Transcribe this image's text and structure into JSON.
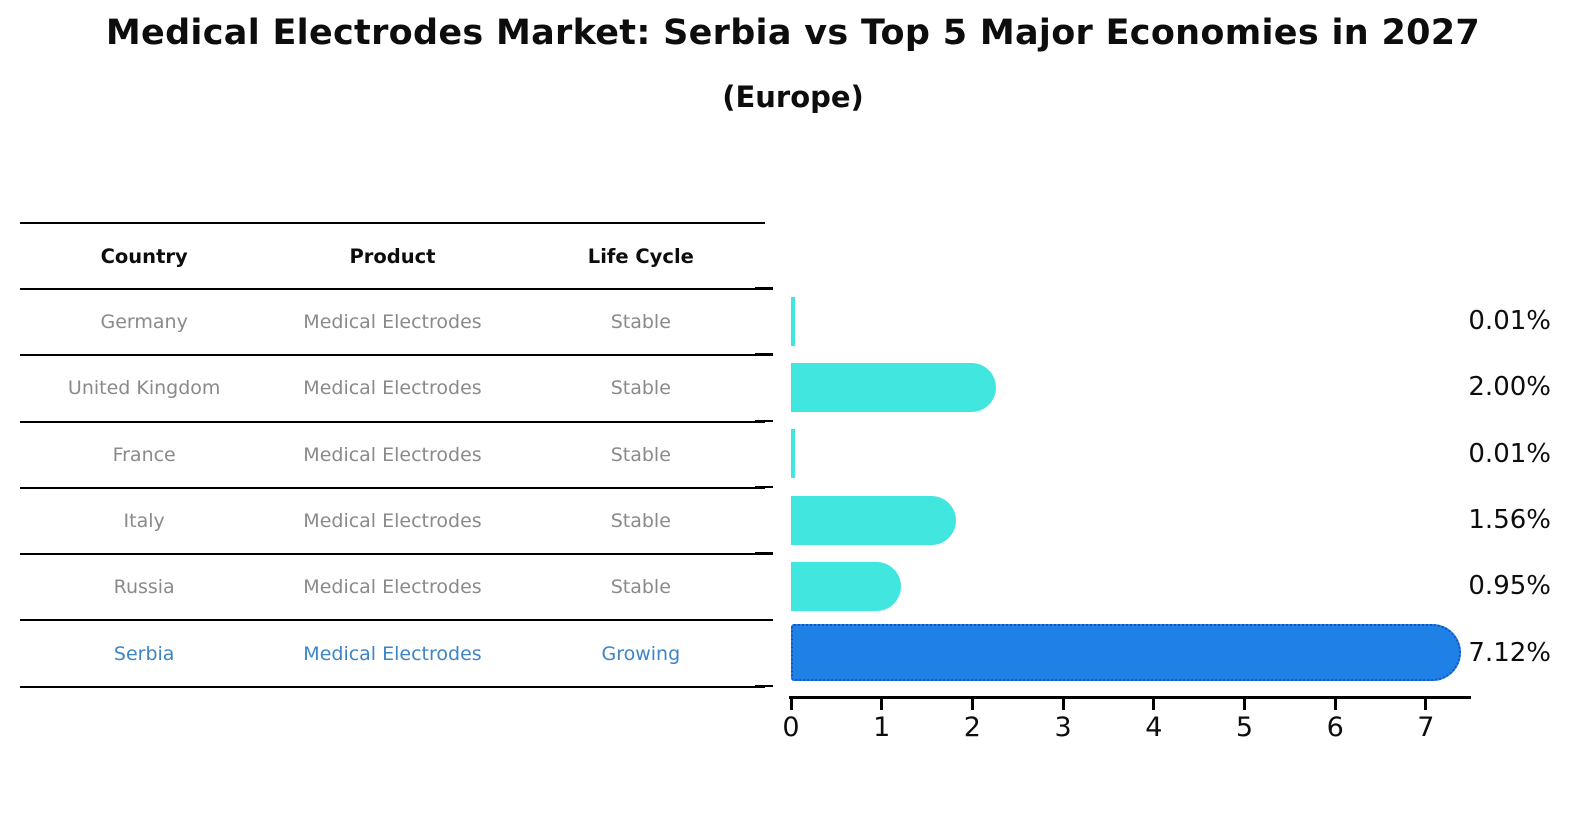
{
  "header": {
    "title": "Medical Electrodes Market: Serbia vs Top 5 Major Economies in 2027",
    "subtitle": "(Europe)"
  },
  "table": {
    "columns": [
      "Country",
      "Product",
      "Life Cycle"
    ],
    "rows": [
      {
        "country": "Germany",
        "product": "Medical Electrodes",
        "life_cycle": "Stable",
        "highlighted": false
      },
      {
        "country": "United Kingdom",
        "product": "Medical Electrodes",
        "life_cycle": "Stable",
        "highlighted": false
      },
      {
        "country": "France",
        "product": "Medical Electrodes",
        "life_cycle": "Stable",
        "highlighted": false
      },
      {
        "country": "Italy",
        "product": "Medical Electrodes",
        "life_cycle": "Stable",
        "highlighted": false
      },
      {
        "country": "Russia",
        "product": "Medical Electrodes",
        "life_cycle": "Stable",
        "highlighted": false
      },
      {
        "country": "Serbia",
        "product": "Medical Electrodes",
        "life_cycle": "Growing",
        "highlighted": true
      }
    ]
  },
  "chart_data": {
    "type": "bar",
    "orientation": "horizontal",
    "title": "Medical Electrodes Market: Serbia vs Top 5 Major Economies in 2027 (Europe)",
    "categories": [
      "Germany",
      "United Kingdom",
      "France",
      "Italy",
      "Russia",
      "Serbia"
    ],
    "values": [
      0.01,
      2.0,
      0.01,
      1.56,
      0.95,
      7.12
    ],
    "value_labels": [
      "0.01%",
      "2.00%",
      "0.01%",
      "1.56%",
      "0.95%",
      "7.12%"
    ],
    "xlim": [
      0,
      7.48
    ],
    "xticks": [
      "0",
      "1",
      "2",
      "3",
      "4",
      "5",
      "6",
      "7"
    ],
    "grid": false,
    "legend": false,
    "highlight_index": 5,
    "highlight_category": "Serbia"
  },
  "colors": {
    "bar_stable": "#41e6de",
    "bar_highlight": "#1f80e6",
    "bar_highlight_border": "#1055c8",
    "table_text": "#8a8a8a",
    "table_header_text": "#0d0d0d",
    "highlight_text": "#3d85c6",
    "axis": "#000000",
    "value_label_text": "#0d0d0d"
  }
}
